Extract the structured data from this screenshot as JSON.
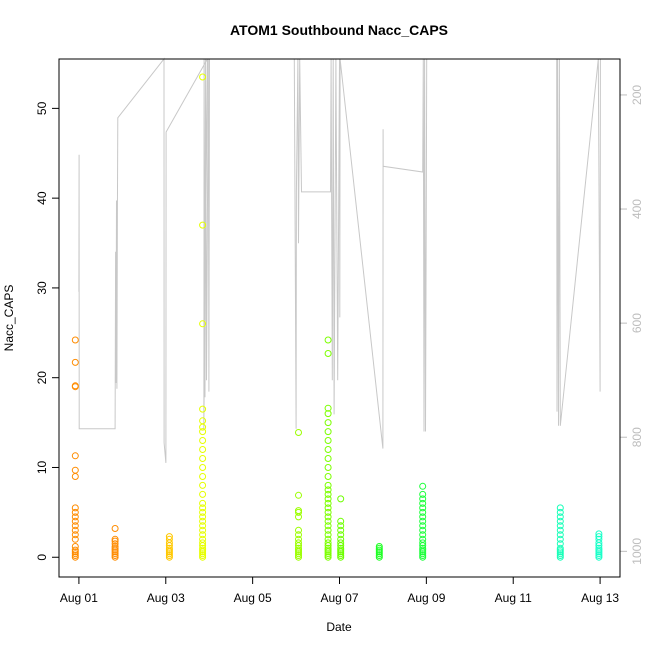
{
  "chart_data": {
    "type": "scatter",
    "title": "ATOM1 Southbound Nacc_CAPS",
    "xlabel": "Date",
    "ylabel": "Nacc_CAPS",
    "xlim": [
      "2016-07-31T13:00",
      "2016-08-13T11:00"
    ],
    "ylim": [
      -2.2,
      55.5
    ],
    "x_ticks": [
      "Aug 01",
      "Aug 03",
      "Aug 05",
      "Aug 07",
      "Aug 09",
      "Aug 11",
      "Aug 13"
    ],
    "x_tick_dates": [
      "2016-08-01",
      "2016-08-03",
      "2016-08-05",
      "2016-08-07",
      "2016-08-09",
      "2016-08-11",
      "2016-08-13"
    ],
    "y_ticks": [
      0,
      10,
      20,
      30,
      40,
      50
    ],
    "right_axis": {
      "ticks": [
        200,
        400,
        600,
        800,
        1000
      ],
      "ylim": [
        1045,
        137
      ],
      "color": "#bdbdbd"
    },
    "grid": false,
    "marker": "open-circle",
    "clusters": [
      {
        "date": "2016-08-01T00:00",
        "color": "#ff8c00",
        "values": [
          0,
          0.2,
          0.4,
          0.6,
          0.8,
          1.2,
          2.0,
          2.5,
          3.0,
          3.5,
          4.0,
          4.5,
          5.0,
          5.5,
          9.0,
          9.7,
          11.3,
          19.0,
          19.1,
          21.7,
          24.2
        ]
      },
      {
        "date": "2016-08-01T20:00",
        "color": "#ff8c00",
        "values": [
          0,
          0.2,
          0.4,
          0.6,
          0.8,
          1.0,
          1.2,
          1.5,
          1.8,
          2.0,
          3.2
        ]
      },
      {
        "date": "2016-08-03T00:00",
        "color": "#ffc800",
        "values": [
          0,
          0.2,
          0.4,
          0.6,
          0.8,
          1.0,
          1.3,
          1.6,
          2.0,
          2.3
        ]
      },
      {
        "date": "2016-08-03T21:00",
        "color": "#e6ff00",
        "values": [
          0,
          0.2,
          0.4,
          0.6,
          0.8,
          1.0,
          1.3,
          1.6,
          2.0,
          2.5,
          3.0,
          3.5,
          4.0,
          4.5,
          5.0,
          5.5,
          6.0,
          7.0,
          8.0,
          9.0,
          10.0,
          11.0,
          12.0,
          13.0,
          14.0,
          14.5,
          15.2,
          16.5,
          26.0,
          37.0,
          53.5
        ]
      },
      {
        "date": "2016-08-06T00:00",
        "color": "#9bff00",
        "values": [
          0,
          0.2,
          0.4,
          0.6,
          0.8,
          1.0,
          1.3,
          1.6,
          2.0,
          2.5,
          3.0,
          4.5,
          5.0,
          5.2,
          6.9,
          13.9
        ]
      },
      {
        "date": "2016-08-06T19:00",
        "color": "#7cff00",
        "values": [
          0,
          0.2,
          0.4,
          0.6,
          0.8,
          1.0,
          1.3,
          1.6,
          2.0,
          2.5,
          3.0,
          3.5,
          4.0,
          4.5,
          5.0,
          5.5,
          6.0,
          6.5,
          7.0,
          7.5,
          8.0,
          9.0,
          10.0,
          11.0,
          12.0,
          13.0,
          14.0,
          15.0,
          16.0,
          16.6,
          22.7,
          24.2
        ]
      },
      {
        "date": "2016-08-07T00:00",
        "color": "#6eff00",
        "values": [
          0,
          0.2,
          0.4,
          0.6,
          0.8,
          1.0,
          1.3,
          1.6,
          2.0,
          2.5,
          3.0,
          3.5,
          4.0,
          6.5
        ]
      },
      {
        "date": "2016-08-08T00:00",
        "color": "#1eff24",
        "values": [
          0,
          0.2,
          0.4,
          0.6,
          0.8,
          1.0,
          1.2
        ]
      },
      {
        "date": "2016-08-08T22:00",
        "color": "#1eff3c",
        "values": [
          0,
          0.2,
          0.4,
          0.6,
          0.8,
          1.0,
          1.3,
          1.6,
          2.0,
          2.5,
          3.0,
          3.5,
          4.0,
          4.5,
          5.0,
          5.5,
          6.0,
          6.5,
          7.0,
          7.9
        ]
      },
      {
        "date": "2016-08-12T00:00",
        "color": "#19ffb9",
        "values": [
          0,
          0.2,
          0.4,
          0.6,
          0.8,
          1.0,
          1.5,
          2.0,
          2.5,
          3.0,
          3.5,
          4.0,
          4.5,
          5.0,
          5.5
        ]
      },
      {
        "date": "2016-08-13T00:00",
        "color": "#19ffc8",
        "values": [
          0,
          0.2,
          0.4,
          0.6,
          0.8,
          1.0,
          1.3,
          1.6,
          2.0,
          2.3,
          2.6
        ]
      }
    ],
    "secondary_series": {
      "color": "#c8c8c8",
      "axis": "right",
      "points": [
        [
          "2016-08-01T00:00",
          545
        ],
        [
          "2016-08-01T00:05",
          305
        ],
        [
          "2016-08-01T00:10",
          785
        ],
        [
          "2016-08-01T20:00",
          785
        ],
        [
          "2016-08-01T20:15",
          475
        ],
        [
          "2016-08-01T20:30",
          705
        ],
        [
          "2016-08-01T20:45",
          385
        ],
        [
          "2016-08-01T21:00",
          715
        ],
        [
          "2016-08-01T21:15",
          410
        ],
        [
          "2016-08-01T21:30",
          240
        ],
        [
          "2016-08-02T23:00",
          137
        ],
        [
          "2016-08-02T23:05",
          810
        ],
        [
          "2016-08-03T00:05",
          845
        ],
        [
          "2016-08-03T00:10",
          265
        ],
        [
          "2016-08-03T23:00",
          137
        ],
        [
          "2016-08-03T21:00",
          785
        ],
        [
          "2016-08-03T21:05",
          730
        ],
        [
          "2016-08-03T21:10",
          137
        ],
        [
          "2016-08-03T21:40",
          730
        ],
        [
          "2016-08-03T22:00",
          137
        ],
        [
          "2016-08-03T22:30",
          700
        ],
        [
          "2016-08-03T23:30",
          137
        ],
        [
          "2016-08-03T23:50",
          720
        ],
        [
          "2016-08-04T00:10",
          137
        ],
        [
          "2016-08-05T23:00",
          137
        ],
        [
          "2016-08-06T00:00",
          785
        ],
        [
          "2016-08-06T00:10",
          370
        ],
        [
          "2016-08-06T01:00",
          137
        ],
        [
          "2016-08-06T01:20",
          460
        ],
        [
          "2016-08-06T02:00",
          137
        ],
        [
          "2016-08-06T03:00",
          370
        ],
        [
          "2016-08-06T19:00",
          370
        ],
        [
          "2016-08-06T19:20",
          137
        ],
        [
          "2016-08-06T20:00",
          700
        ],
        [
          "2016-08-06T20:30",
          137
        ],
        [
          "2016-08-06T21:00",
          760
        ],
        [
          "2016-08-06T22:00",
          137
        ],
        [
          "2016-08-06T23:00",
          700
        ],
        [
          "2016-08-07T00:00",
          137
        ],
        [
          "2016-08-07T00:10",
          590
        ],
        [
          "2016-08-07T00:20",
          137
        ],
        [
          "2016-08-08T00:00",
          820
        ],
        [
          "2016-08-08T00:05",
          260
        ],
        [
          "2016-08-08T00:10",
          325
        ],
        [
          "2016-08-08T22:00",
          335
        ],
        [
          "2016-08-08T22:20",
          137
        ],
        [
          "2016-08-08T22:40",
          790
        ],
        [
          "2016-08-08T23:00",
          137
        ],
        [
          "2016-08-08T23:30",
          790
        ],
        [
          "2016-08-09T00:00",
          335
        ],
        [
          "2016-08-09T00:10",
          137
        ],
        [
          "2016-08-12T00:00",
          137
        ],
        [
          "2016-08-12T00:10",
          755
        ],
        [
          "2016-08-12T00:30",
          137
        ],
        [
          "2016-08-12T01:00",
          780
        ],
        [
          "2016-08-12T01:30",
          137
        ],
        [
          "2016-08-12T02:00",
          780
        ],
        [
          "2016-08-12T23:00",
          137
        ],
        [
          "2016-08-13T00:00",
          720
        ],
        [
          "2016-08-13T00:10",
          137
        ]
      ]
    }
  }
}
